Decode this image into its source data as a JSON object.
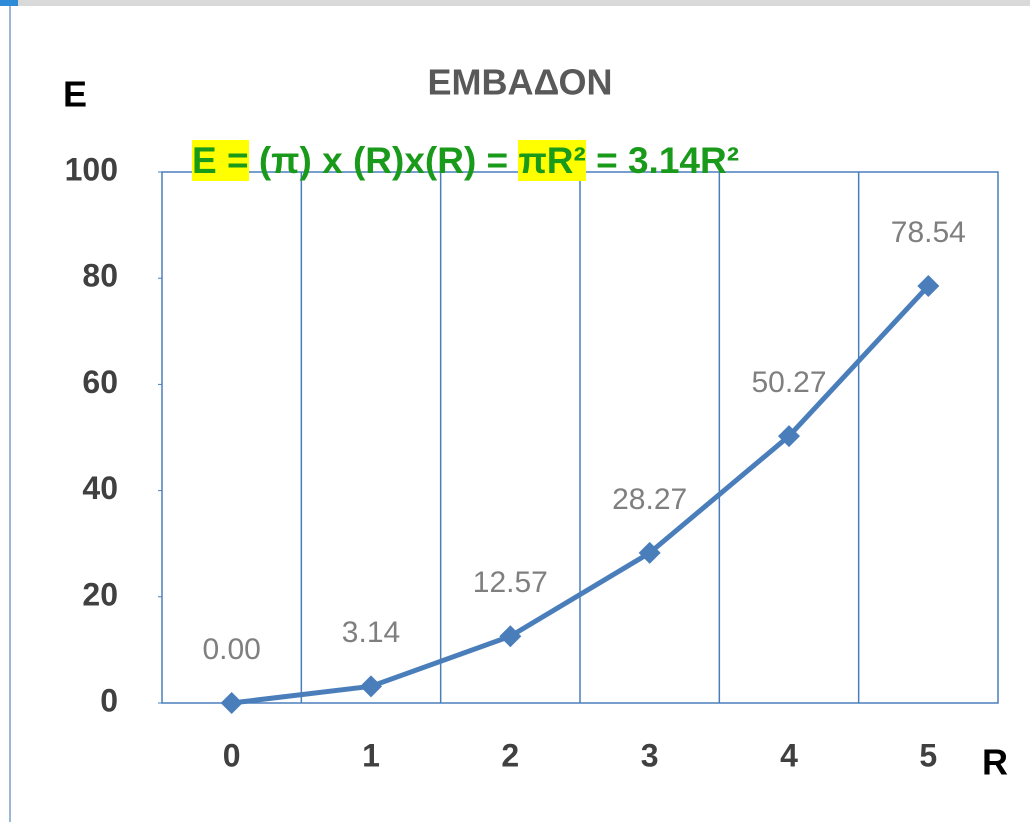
{
  "chart_data": {
    "type": "line",
    "title": "ΕΜΒΑΔΟΝ",
    "y_label": "E",
    "x_label": "R",
    "annotation": [
      {
        "text": "E =",
        "highlight": true
      },
      {
        "text": " (π) x (R)x(R) = ",
        "highlight": false
      },
      {
        "text": "πR²",
        "highlight": true
      },
      {
        "text": " = 3.14R²",
        "highlight": false
      }
    ],
    "annotation_color": "#1a9a1a",
    "highlight_color": "#ffff00",
    "categories": [
      "0",
      "1",
      "2",
      "3",
      "4",
      "5"
    ],
    "values": [
      0,
      3.14,
      12.57,
      28.27,
      50.27,
      78.54
    ],
    "value_labels": [
      "0.00",
      "3.14",
      "12.57",
      "28.27",
      "50.27",
      "78.54"
    ],
    "color": "#4a7ebb",
    "ylim": [
      0,
      100
    ],
    "yticks": [
      0,
      20,
      40,
      60,
      80,
      100
    ],
    "vertical_grid": true
  }
}
